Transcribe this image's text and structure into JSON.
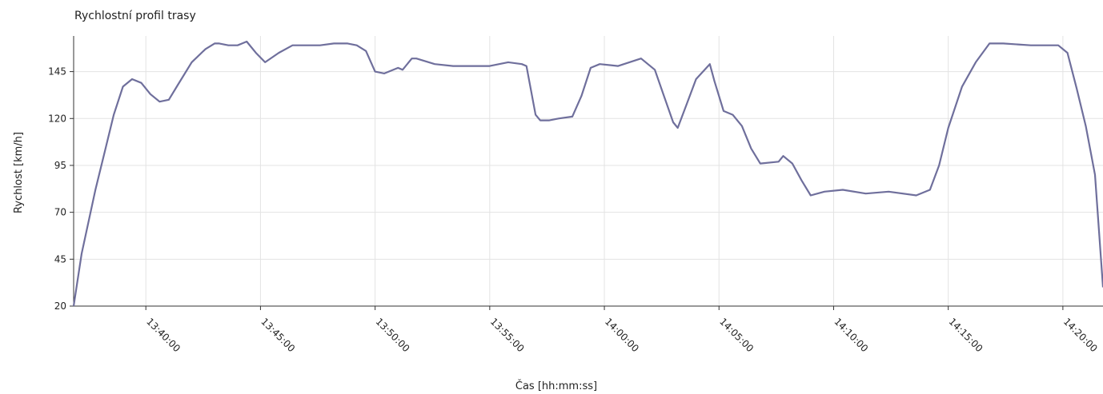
{
  "chart_data": {
    "type": "line",
    "title": "Rychlostní profil trasy",
    "xlabel": "Čas  [hh:mm:ss]",
    "ylabel": "Rychlost [km/h]",
    "x_tick_labels": [
      "13:40:00",
      "13:45:00",
      "13:50:00",
      "13:55:00",
      "14:00:00",
      "14:05:00",
      "14:10:00",
      "14:15:00",
      "14:20:00"
    ],
    "y_ticks": [
      20,
      45,
      70,
      95,
      120,
      145
    ],
    "xlim": [
      "13:36:51",
      "14:21:45"
    ],
    "ylim": [
      20,
      164
    ],
    "grid": true,
    "line_color": "#6f6f9c",
    "series": [
      {
        "x": [
          "13:36:51",
          "13:37:12",
          "13:37:48",
          "13:38:12",
          "13:38:36",
          "13:39:00",
          "13:39:24",
          "13:39:48",
          "13:40:12",
          "13:40:36",
          "13:41:00",
          "13:41:24",
          "13:42:00",
          "13:42:36",
          "13:43:00",
          "13:43:12",
          "13:43:36",
          "13:44:00",
          "13:44:12",
          "13:44:24",
          "13:44:48",
          "13:45:12",
          "13:45:48",
          "13:46:24",
          "13:47:00",
          "13:47:36",
          "13:48:12",
          "13:48:48",
          "13:49:12",
          "13:49:36",
          "13:50:00",
          "13:50:24",
          "13:51:00",
          "13:51:12",
          "13:51:36",
          "13:51:48",
          "13:52:36",
          "13:53:24",
          "13:54:12",
          "13:55:00",
          "13:55:48",
          "13:56:24",
          "13:56:36",
          "13:56:48",
          "13:57:00",
          "13:57:12",
          "13:57:36",
          "13:58:00",
          "13:58:36",
          "13:59:00",
          "13:59:24",
          "13:59:48",
          "14:00:36",
          "14:01:36",
          "14:02:12",
          "14:02:36",
          "14:03:00",
          "14:03:12",
          "14:03:36",
          "14:04:00",
          "14:04:36",
          "14:04:48",
          "14:05:12",
          "14:05:36",
          "14:06:00",
          "14:06:24",
          "14:06:48",
          "14:07:36",
          "14:07:48",
          "14:08:12",
          "14:08:36",
          "14:09:00",
          "14:09:36",
          "14:10:24",
          "14:11:24",
          "14:12:24",
          "14:13:36",
          "14:14:12",
          "14:14:36",
          "14:15:00",
          "14:15:36",
          "14:16:12",
          "14:16:48",
          "14:17:24",
          "14:18:36",
          "14:19:48",
          "14:20:12",
          "14:20:36",
          "14:21:00",
          "14:21:24",
          "14:21:45"
        ],
        "y": [
          20,
          48,
          82,
          102,
          122,
          137,
          141,
          139,
          133,
          129,
          130,
          138,
          150,
          157,
          160,
          160,
          159,
          159,
          160,
          161,
          155,
          150,
          155,
          159,
          159,
          159,
          160,
          160,
          159,
          156,
          145,
          144,
          147,
          146,
          152,
          152,
          149,
          148,
          148,
          148,
          150,
          149,
          148,
          135,
          122,
          119,
          119,
          120,
          121,
          132,
          147,
          149,
          148,
          152,
          146,
          132,
          118,
          115,
          128,
          141,
          149,
          140,
          124,
          122,
          116,
          104,
          96,
          97,
          100,
          96,
          87,
          79,
          81,
          82,
          80,
          81,
          79,
          82,
          95,
          115,
          137,
          150,
          160,
          160,
          159,
          159,
          155,
          136,
          116,
          90,
          30
        ]
      }
    ]
  }
}
